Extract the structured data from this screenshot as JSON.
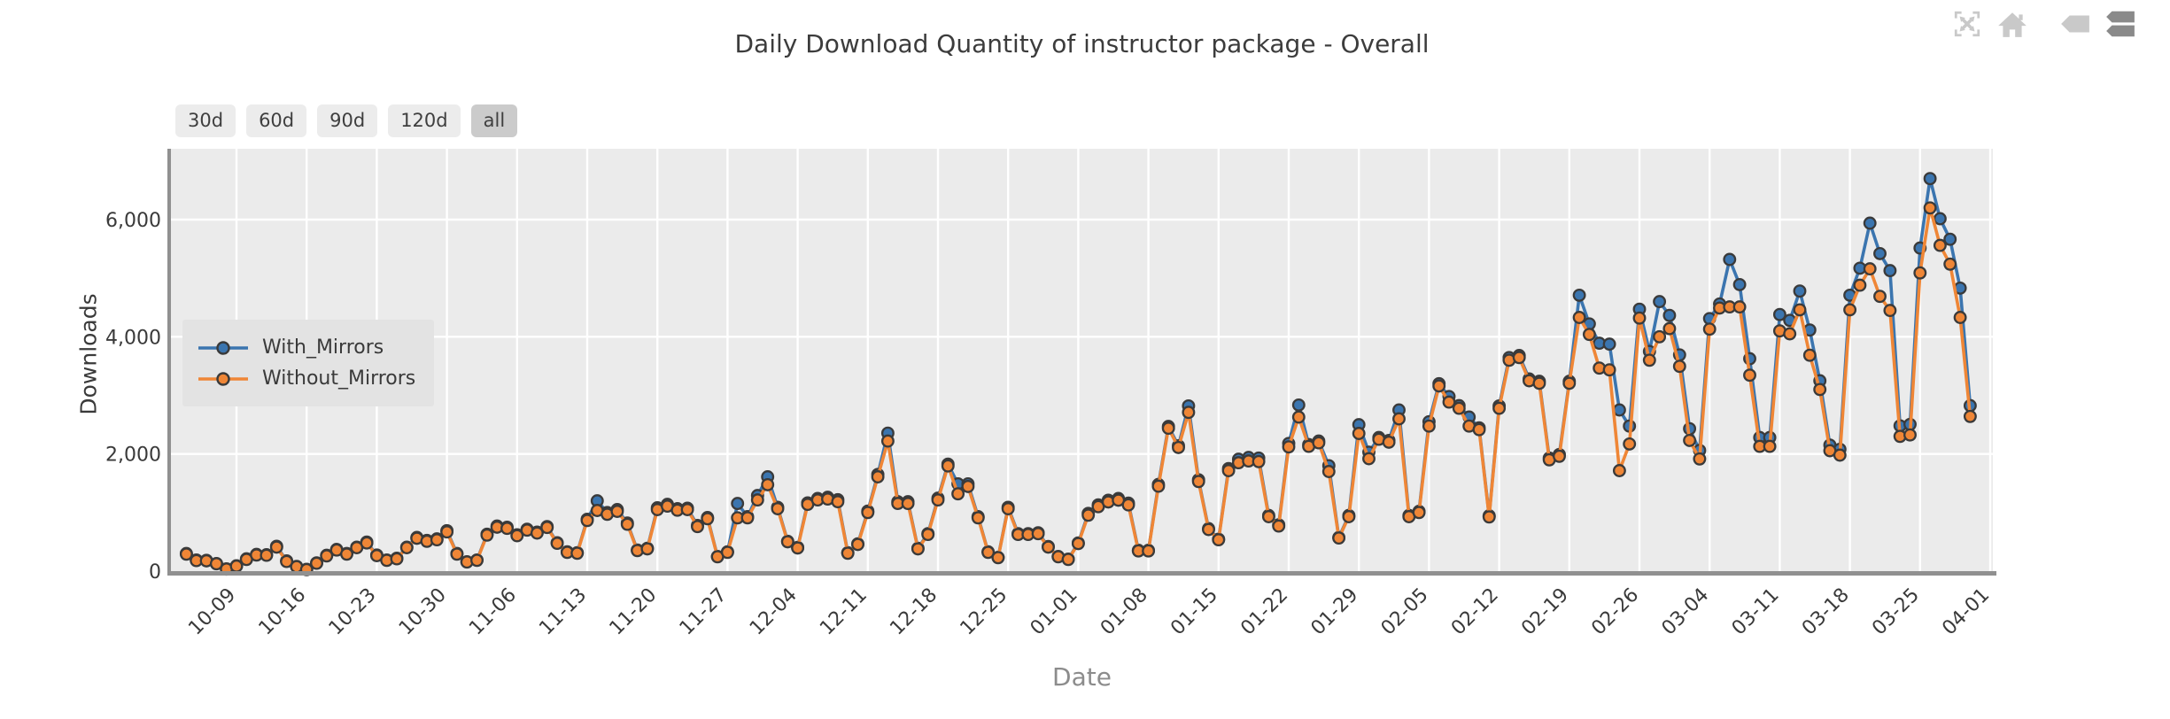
{
  "title": "Daily Download Quantity of instructor package - Overall",
  "toolbar": {
    "icons": [
      "fullscreen-icon",
      "home-icon",
      "tag-icon",
      "layers-icon"
    ],
    "light_color": "#c9c9c9",
    "dark_color": "#8a8a8a"
  },
  "range_buttons": {
    "labels": [
      "30d",
      "60d",
      "90d",
      "120d",
      "all"
    ],
    "selected": "all"
  },
  "legend": {
    "items": [
      "With_Mirrors",
      "Without_Mirrors"
    ]
  },
  "chart_data": {
    "type": "line",
    "title": "Daily Download Quantity of instructor package - Overall",
    "xlabel": "Date",
    "ylabel": "Downloads",
    "grid": true,
    "plot_background": "#ebebeb",
    "gridline_color": "#ffffff",
    "spine_color": "#909090",
    "marker_edge_color": "#3a3a3a",
    "legend_position": "upper-left",
    "ylim": [
      0,
      7200
    ],
    "y_tick_values": [
      0,
      2000,
      4000,
      6000
    ],
    "y_tick_labels": [
      "0",
      "2,000",
      "4,000",
      "6,000"
    ],
    "x_tick_labels": [
      "10-09",
      "10-16",
      "10-23",
      "10-30",
      "11-06",
      "11-13",
      "11-20",
      "11-27",
      "12-04",
      "12-11",
      "12-18",
      "12-25",
      "01-01",
      "01-08",
      "01-15",
      "01-22",
      "01-29",
      "02-05",
      "02-12",
      "02-19",
      "02-26",
      "03-04",
      "03-11",
      "03-18",
      "03-25",
      "04-01"
    ],
    "x_note": "daily data points; first point is 5 days before the first tick (10-09); ticks are every 7 days",
    "first_point_days_before_first_tick": 5,
    "series": [
      {
        "name": "With_Mirrors",
        "color": "#3b75af",
        "values": [
          300,
          190,
          185,
          130,
          40,
          90,
          210,
          285,
          280,
          425,
          175,
          80,
          30,
          140,
          270,
          370,
          300,
          410,
          495,
          275,
          190,
          220,
          410,
          575,
          525,
          550,
          690,
          300,
          160,
          190,
          630,
          770,
          750,
          620,
          715,
          665,
          760,
          485,
          330,
          315,
          885,
          1200,
          1000,
          1050,
          820,
          360,
          390,
          1080,
          1140,
          1065,
          1075,
          780,
          915,
          250,
          330,
          1155,
          930,
          1290,
          1610,
          1090,
          510,
          405,
          1165,
          1240,
          1260,
          1220,
          315,
          465,
          1025,
          1650,
          2355,
          1185,
          1185,
          390,
          640,
          1245,
          1825,
          1490,
          1490,
          930,
          330,
          235,
          1090,
          640,
          640,
          655,
          420,
          250,
          205,
          480,
          985,
          1130,
          1210,
          1240,
          1160,
          355,
          355,
          1480,
          2470,
          2140,
          2820,
          1560,
          725,
          545,
          1750,
          1910,
          1940,
          1930,
          950,
          790,
          2180,
          2835,
          2160,
          2220,
          1800,
          575,
          950,
          2500,
          2030,
          2280,
          2230,
          2750,
          950,
          1020,
          2550,
          3200,
          2980,
          2825,
          2630,
          2445,
          945,
          2820,
          3645,
          3680,
          3280,
          3240,
          1930,
          1990,
          3240,
          4710,
          4220,
          3890,
          3875,
          2750,
          2475,
          4470,
          3750,
          4600,
          4365,
          3690,
          2430,
          2060,
          4310,
          4560,
          5320,
          4890,
          3625,
          2280,
          2280,
          4380,
          4280,
          4780,
          4115,
          3250,
          2150,
          2080,
          4710,
          5170,
          5940,
          5420,
          5130,
          2480,
          2505,
          5515,
          6700,
          6015,
          5665,
          4830,
          2825
        ]
      },
      {
        "name": "Without_Mirrors",
        "color": "#ef8636",
        "values": [
          290,
          180,
          175,
          125,
          35,
          85,
          200,
          275,
          270,
          410,
          165,
          75,
          25,
          135,
          260,
          360,
          290,
          400,
          480,
          265,
          185,
          210,
          400,
          560,
          510,
          535,
          670,
          290,
          155,
          185,
          615,
          750,
          730,
          605,
          700,
          650,
          745,
          475,
          320,
          305,
          865,
          1035,
          970,
          1020,
          800,
          350,
          380,
          1050,
          1110,
          1040,
          1050,
          760,
          895,
          245,
          320,
          910,
          910,
          1215,
          1475,
          1065,
          500,
          395,
          1140,
          1215,
          1230,
          1185,
          305,
          455,
          1000,
          1610,
          2220,
          1155,
          1155,
          380,
          625,
          1215,
          1795,
          1320,
          1445,
          910,
          320,
          230,
          1065,
          625,
          625,
          640,
          410,
          245,
          200,
          470,
          955,
          1100,
          1180,
          1210,
          1130,
          345,
          345,
          1450,
          2440,
          2110,
          2710,
          1530,
          710,
          535,
          1715,
          1850,
          1880,
          1870,
          930,
          770,
          2120,
          2630,
          2130,
          2190,
          1700,
          565,
          930,
          2350,
          1920,
          2250,
          2200,
          2600,
          930,
          1000,
          2475,
          3160,
          2885,
          2780,
          2475,
          2415,
          925,
          2780,
          3600,
          3645,
          3250,
          3205,
          1900,
          1960,
          3205,
          4330,
          4040,
          3465,
          3435,
          1715,
          2170,
          4320,
          3600,
          4000,
          4140,
          3495,
          2230,
          1915,
          4130,
          4490,
          4510,
          4510,
          3345,
          2130,
          2130,
          4100,
          4050,
          4460,
          3685,
          3100,
          2055,
          1980,
          4460,
          4880,
          5160,
          4690,
          4450,
          2300,
          2325,
          5090,
          6200,
          5560,
          5240,
          4330,
          2640
        ]
      }
    ]
  }
}
